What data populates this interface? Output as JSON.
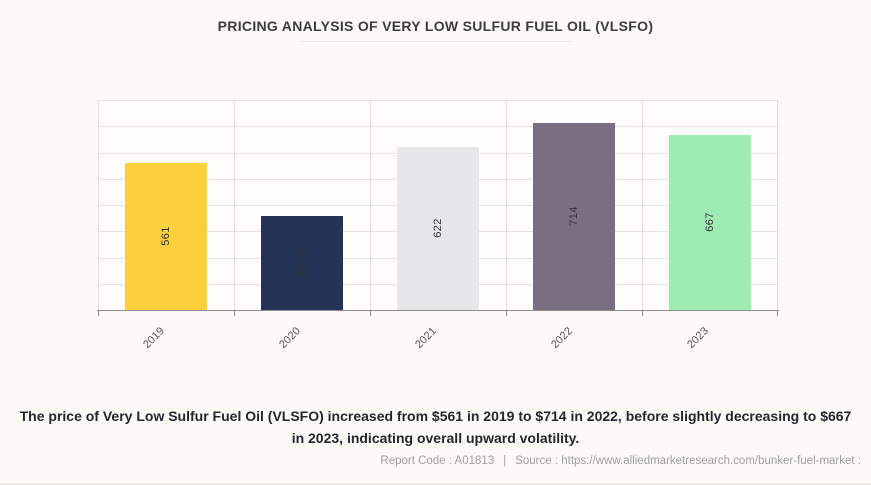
{
  "page": {
    "title": "PRICING ANALYSIS OF VERY LOW SULFUR FUEL OIL (VLSFO)",
    "caption": "The price of Very Low Sulfur Fuel Oil (VLSFO) increased from $561 in 2019 to $714 in 2022, before slightly decreasing to $667 in 2023, indicating overall upward volatility.",
    "footer": {
      "report_code": "Report Code : A01813",
      "separator": "|",
      "source": "Source : https://www.alliedmarketresearch.com/bunker-fuel-market :"
    },
    "colors": {
      "background": "#fcfaf6",
      "caption_text": "#24262f",
      "footer_text": "#9e9e9e",
      "gridline": "#e3e2e0",
      "axis_line": "#8d8d8d"
    }
  },
  "chart_data": {
    "type": "bar",
    "title": "PRICING ANALYSIS OF VERY LOW SULFUR FUEL OIL (VLSFO)",
    "categories": [
      "2019",
      "2020",
      "2021",
      "2022",
      "2023"
    ],
    "values": [
      561,
      357.5,
      622,
      714,
      667
    ],
    "value_labels": [
      "561",
      "357.5",
      "622",
      "714",
      "667"
    ],
    "bar_colors": [
      "#fbd03c",
      "#243355",
      "#e7e6e9",
      "#7a6e83",
      "#9eebb4"
    ],
    "xlabel": "",
    "ylabel": "",
    "ylim": [
      0,
      800
    ],
    "grid_step": 100,
    "grid": true,
    "legend_position": "none",
    "value_label_rotation": -90,
    "xtick_rotation": -45
  }
}
